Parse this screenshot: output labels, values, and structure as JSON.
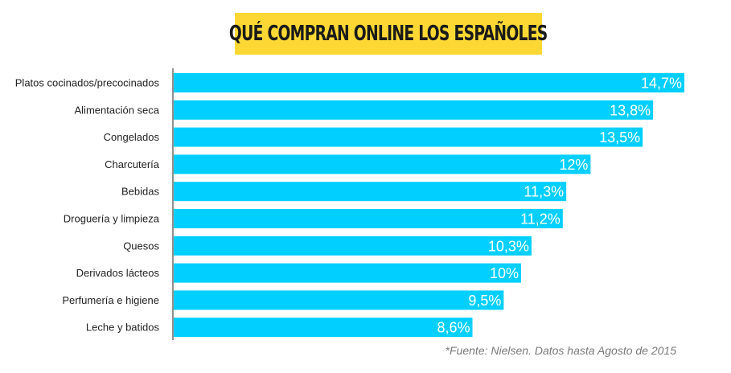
{
  "chart_data": {
    "type": "bar",
    "orientation": "horizontal",
    "title": "QUÉ COMPRAN ONLINE LOS ESPAÑOLES",
    "categories": [
      "Platos cocinados/precocinados",
      "Alimentación seca",
      "Congelados",
      "Charcutería",
      "Bebidas",
      "Droguería y limpieza",
      "Quesos",
      "Derivados lácteos",
      "Perfumería e higiene",
      "Leche y batidos"
    ],
    "values": [
      14.7,
      13.8,
      13.5,
      12,
      11.3,
      11.2,
      10.3,
      10,
      9.5,
      8.6
    ],
    "value_labels": [
      "14,7%",
      "13,8%",
      "13,5%",
      "12%",
      "11,3%",
      "11,2%",
      "10,3%",
      "10%",
      "9,5%",
      "8,6%"
    ],
    "xlim": [
      0,
      14.7
    ],
    "xlabel": "",
    "ylabel": "",
    "grid": false,
    "bar_color": "#00cfff",
    "label_color": "#ffffff",
    "source": "*Fuente: Nielsen. Datos hasta Agosto de 2015"
  }
}
